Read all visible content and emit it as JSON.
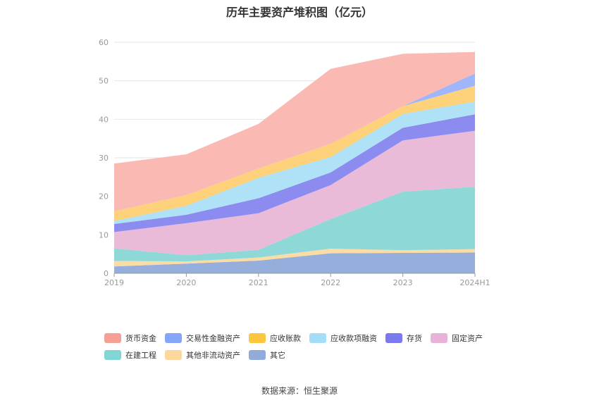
{
  "title": "历年主要资产堆积图（亿元）",
  "source": "数据来源：恒生聚源",
  "chart_data": {
    "type": "area",
    "stacked": true,
    "title": "历年主要资产堆积图（亿元）",
    "categories": [
      "2019",
      "2020",
      "2021",
      "2022",
      "2023",
      "2024H1"
    ],
    "ylim": [
      0,
      60
    ],
    "yticks": [
      0,
      10,
      20,
      30,
      40,
      50,
      60
    ],
    "grid": true,
    "legend_position": "bottom",
    "series": [
      {
        "name": "其它",
        "color": "#96aedc",
        "values": [
          1.8,
          2.5,
          3.3,
          5.2,
          5.3,
          5.4
        ]
      },
      {
        "name": "其他非流动资产",
        "color": "#fbdca5",
        "values": [
          1.4,
          0.6,
          0.8,
          1.2,
          0.7,
          0.9
        ]
      },
      {
        "name": "在建工程",
        "color": "#8ed9d8",
        "values": [
          3.3,
          1.6,
          2.0,
          7.7,
          15.2,
          16.2
        ]
      },
      {
        "name": "固定资产",
        "color": "#e9bbd9",
        "values": [
          4.2,
          8.3,
          9.5,
          8.8,
          13.3,
          14.5
        ]
      },
      {
        "name": "存货",
        "color": "#8c8cf0",
        "values": [
          2.1,
          2.2,
          3.9,
          3.3,
          3.3,
          4.3
        ]
      },
      {
        "name": "应收款项融资",
        "color": "#b0e2f7",
        "values": [
          0.8,
          2.3,
          5.3,
          4.0,
          3.6,
          3.3
        ]
      },
      {
        "name": "应收账款",
        "color": "#fdd27a",
        "values": [
          2.5,
          2.8,
          2.4,
          3.4,
          2.0,
          4.1
        ]
      },
      {
        "name": "交易性金融资产",
        "color": "#9fb6fb",
        "values": [
          0,
          0,
          0,
          0,
          0,
          3.2
        ]
      },
      {
        "name": "货币资金",
        "color": "#fbb9b3",
        "values": [
          12.4,
          10.6,
          11.6,
          19.5,
          13.6,
          5.6
        ]
      }
    ]
  },
  "legend": [
    {
      "label": "货币资金",
      "color": "#f5a097"
    },
    {
      "label": "交易性金融资产",
      "color": "#85a6f7"
    },
    {
      "label": "应收账款",
      "color": "#fcc63f"
    },
    {
      "label": "应收款项融资",
      "color": "#a5dcf8"
    },
    {
      "label": "存货",
      "color": "#7b79ee"
    },
    {
      "label": "固定资产",
      "color": "#e7b3d9"
    },
    {
      "label": "在建工程",
      "color": "#82d6d5"
    },
    {
      "label": "其他非流动资产",
      "color": "#fcd89d"
    },
    {
      "label": "其它",
      "color": "#91abda"
    }
  ]
}
